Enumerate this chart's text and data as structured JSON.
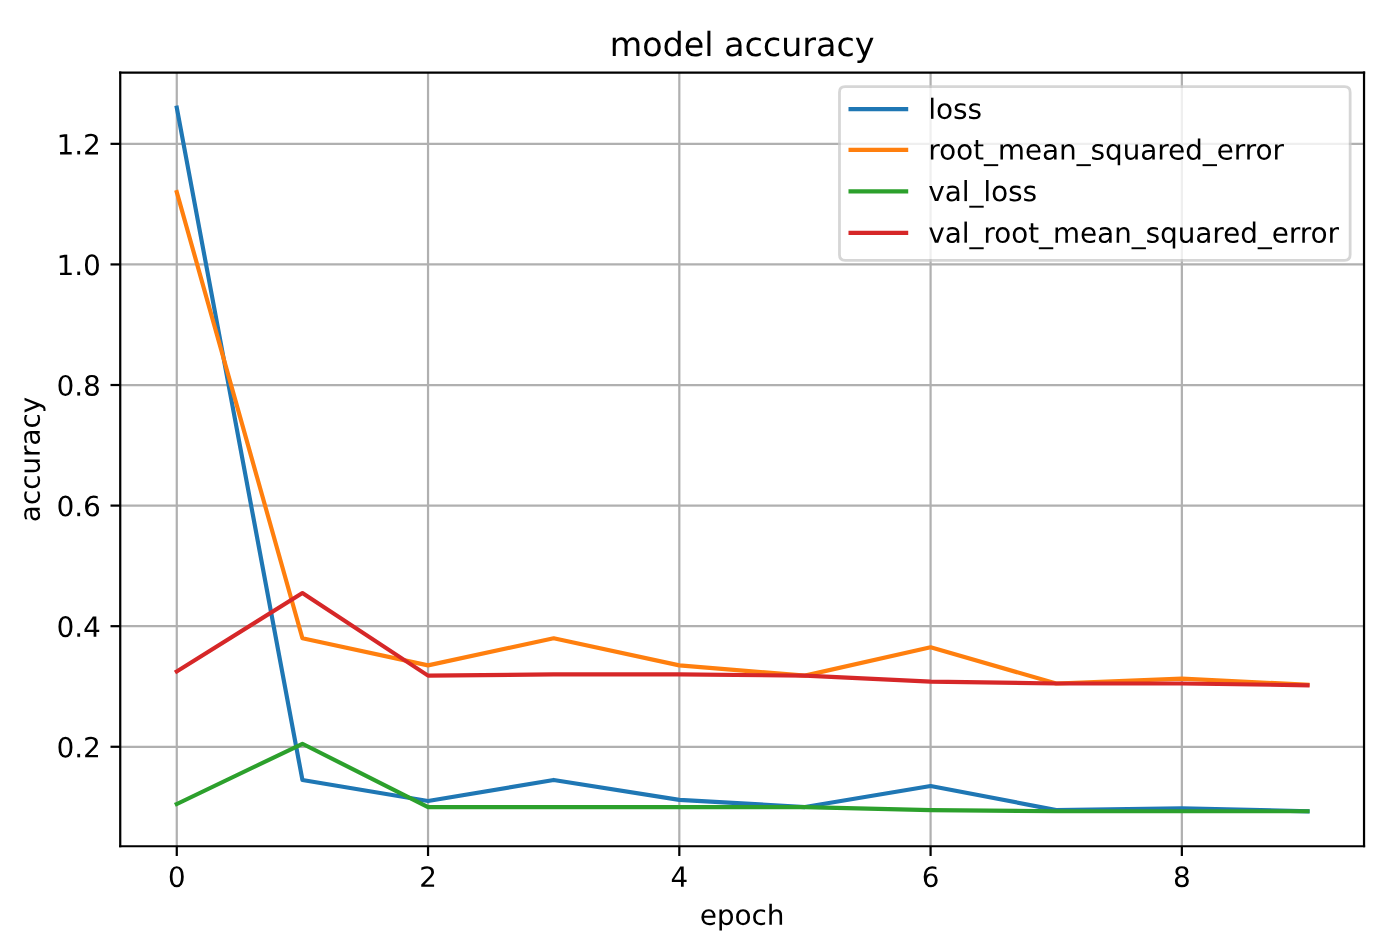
{
  "chart_data": {
    "type": "line",
    "title": "model accuracy",
    "xlabel": "epoch",
    "ylabel": "accuracy",
    "x": [
      0,
      1,
      2,
      3,
      4,
      5,
      6,
      7,
      8,
      9
    ],
    "series": [
      {
        "name": "loss",
        "color": "#1f77b4",
        "values": [
          1.26,
          0.145,
          0.11,
          0.145,
          0.112,
          0.1,
          0.135,
          0.095,
          0.098,
          0.093
        ]
      },
      {
        "name": "root_mean_squared_error",
        "color": "#ff7f0e",
        "values": [
          1.12,
          0.38,
          0.335,
          0.38,
          0.335,
          0.318,
          0.365,
          0.305,
          0.313,
          0.303
        ]
      },
      {
        "name": "val_loss",
        "color": "#2ca02c",
        "values": [
          0.105,
          0.205,
          0.1,
          0.1,
          0.1,
          0.1,
          0.095,
          0.093,
          0.093,
          0.093
        ]
      },
      {
        "name": "val_root_mean_squared_error",
        "color": "#d62728",
        "values": [
          0.325,
          0.455,
          0.318,
          0.32,
          0.32,
          0.318,
          0.308,
          0.305,
          0.305,
          0.302
        ]
      }
    ],
    "xlim": [
      -0.45,
      9.45
    ],
    "ylim": [
      0.035,
      1.318
    ],
    "xticks": [
      0,
      2,
      4,
      6,
      8
    ],
    "yticks": [
      0.2,
      0.4,
      0.6,
      0.8,
      {
        "value": 1,
        "label": "1.0"
      },
      1.2
    ],
    "grid": true,
    "legend": "top right",
    "marker": "none",
    "line_style": "solid"
  }
}
